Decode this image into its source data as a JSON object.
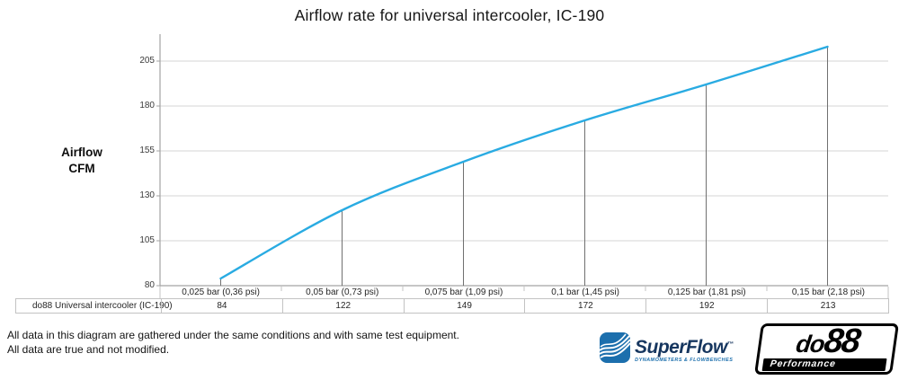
{
  "chart_data": {
    "type": "line",
    "title": "Airflow rate for universal intercooler, IC-190",
    "xlabel": "",
    "ylabel": "Airflow CFM",
    "ylabel_lines": [
      "Airflow",
      "CFM"
    ],
    "categories": [
      "0,025 bar (0,36 psi)",
      "0,05 bar (0,73 psi)",
      "0,075 bar (1,09 psi)",
      "0,1 bar (1,45 psi)",
      "0,125 bar (1,81 psi)",
      "0,15 bar (2,18 psi)"
    ],
    "series": [
      {
        "name": "do88 Universal intercooler (IC-190)",
        "values": [
          84,
          122,
          149,
          172,
          192,
          213
        ],
        "color": "#29ABE2"
      }
    ],
    "ylim": [
      80,
      220
    ],
    "yticks": [
      80,
      105,
      130,
      155,
      180,
      205
    ],
    "grid": true,
    "smooth_line": true,
    "drop_lines": true,
    "legend_position": "data-table-bottom-left",
    "colors": {
      "gridline": "#D5D5D5",
      "axis": "#A3A3A3",
      "drop_line": "#707070",
      "table_border": "#C3C3C3"
    }
  },
  "footer": {
    "line1": "All data in this diagram are gathered under the same conditions and with same test equipment.",
    "line2": "All data are true and not modified."
  },
  "logos": {
    "superflow": {
      "name": "SuperFlow",
      "trademark": "™",
      "tagline": "DYNAMOMETERS & FLOWBENCHES",
      "icon_color": "#1C6FAD",
      "text_color": "#16365F"
    },
    "do88": {
      "name_prefix": "do",
      "name_suffix": "88",
      "tagline": "Performance"
    }
  }
}
